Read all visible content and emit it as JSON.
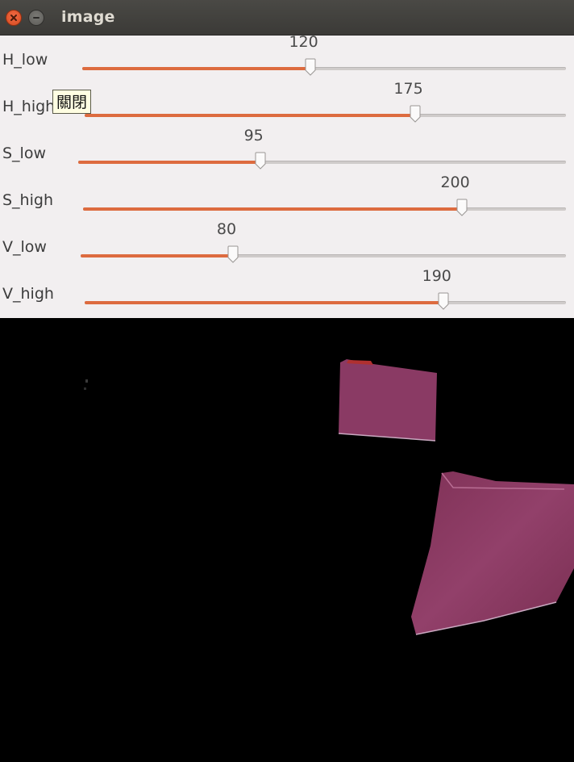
{
  "window": {
    "title": "image",
    "close_icon": "close-icon",
    "minimize_icon": "minimize-icon"
  },
  "tooltip": {
    "text": "關閉"
  },
  "trackbars": [
    {
      "label": "H_low",
      "value": "120",
      "fraction": 0.471
    },
    {
      "label": "H_high",
      "value": "175",
      "fraction": 0.686
    },
    {
      "label": "S_low",
      "value": "95",
      "fraction": 0.373
    },
    {
      "label": "S_high",
      "value": "200",
      "fraction": 0.784
    },
    {
      "label": "V_low",
      "value": "80",
      "fraction": 0.314
    },
    {
      "label": "V_high",
      "value": "190",
      "fraction": 0.745
    }
  ],
  "colors": {
    "accent": "#dd6b3f",
    "track": "#cfcbca",
    "panel_bg": "#f2eff0",
    "mask_object": "#8a3a64"
  },
  "image_view": {
    "content": "threshold-mask-image"
  }
}
